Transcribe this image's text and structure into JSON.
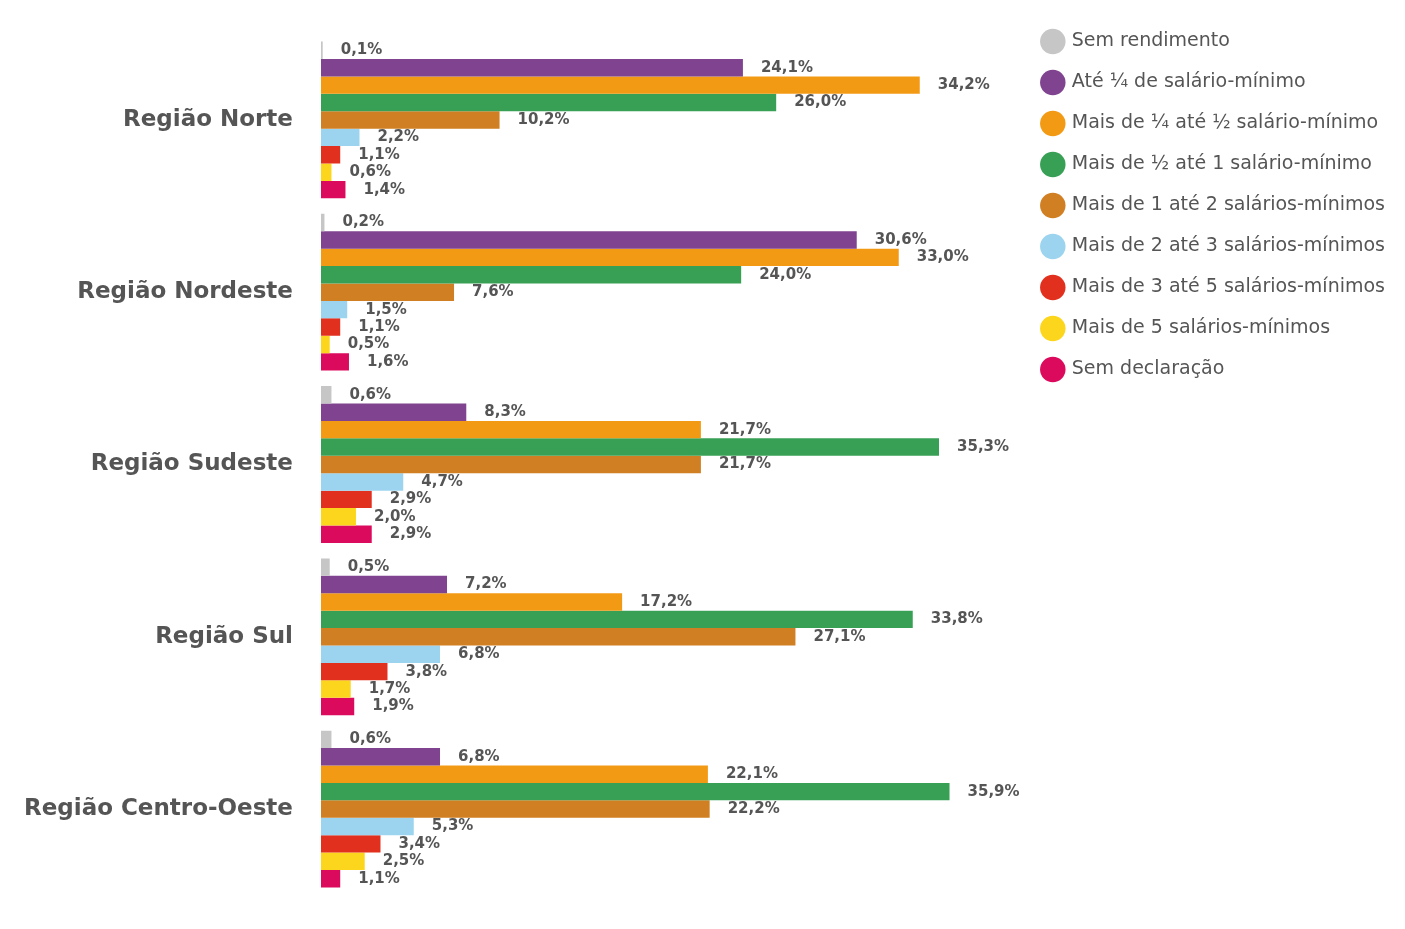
{
  "chart_data": {
    "type": "bar",
    "orientation": "horizontal",
    "legend": "top right",
    "tick_labels": "y",
    "marker": "circle",
    "categories": [
      "Região Norte",
      "Região Nordeste",
      "Região Sudeste",
      "Região Sul",
      "Região Centro-Oeste"
    ],
    "series": [
      {
        "name": "Sem rendimento",
        "color": "#c6c6c6",
        "values": [
          0.1,
          0.2,
          0.6,
          0.5,
          0.6
        ],
        "value_labels": [
          "0,1%",
          "0,2%",
          "0,6%",
          "0,5%",
          "0,6%"
        ]
      },
      {
        "name": "Até ¼ de salário-mínimo",
        "color": "#7f438f",
        "values": [
          24.1,
          30.6,
          8.3,
          7.2,
          6.8
        ],
        "value_labels": [
          "24,1%",
          "30,6%",
          "8,3%",
          "7,2%",
          "6,8%"
        ]
      },
      {
        "name": "Mais de ¼ até ½ salário-mínimo",
        "color": "#f39a14",
        "values": [
          34.2,
          33.0,
          21.7,
          17.2,
          22.1
        ],
        "value_labels": [
          "34,2%",
          "33,0%",
          "21,7%",
          "17,2%",
          "22,1%"
        ]
      },
      {
        "name": "Mais de ½ até 1 salário-mínimo",
        "color": "#37a055",
        "values": [
          26.0,
          24.0,
          35.3,
          33.8,
          35.9
        ],
        "value_labels": [
          "26,0%",
          "24,0%",
          "35,3%",
          "33,8%",
          "35,9%"
        ]
      },
      {
        "name": "Mais de 1 até 2 salários-mínimos",
        "color": "#d07f23",
        "values": [
          10.2,
          7.6,
          21.7,
          27.1,
          22.2
        ],
        "value_labels": [
          "10,2%",
          "7,6%",
          "21,7%",
          "27,1%",
          "22,2%"
        ]
      },
      {
        "name": "Mais de 2 até 3 salários-mínimos",
        "color": "#9cd4ef",
        "values": [
          2.2,
          1.5,
          4.7,
          6.8,
          5.3
        ],
        "value_labels": [
          "2,2%",
          "1,5%",
          "4,7%",
          "6,8%",
          "5,3%"
        ]
      },
      {
        "name": "Mais de 3 até 5 salários-mínimos",
        "color": "#e2301f",
        "values": [
          1.1,
          1.1,
          2.9,
          3.8,
          3.4
        ],
        "value_labels": [
          "1,1%",
          "1,1%",
          "2,9%",
          "3,8%",
          "3,4%"
        ]
      },
      {
        "name": "Mais de 5 salários-mínimos",
        "color": "#fcd61c",
        "values": [
          0.6,
          0.5,
          2.0,
          1.7,
          2.5
        ],
        "value_labels": [
          "0,6%",
          "0,5%",
          "2,0%",
          "1,7%",
          "2,5%"
        ]
      },
      {
        "name": "Sem declaração",
        "color": "#db0a5c",
        "values": [
          1.4,
          1.6,
          2.9,
          1.9,
          1.1
        ],
        "value_labels": [
          "1,4%",
          "1,6%",
          "2,9%",
          "1,9%",
          "1,1%"
        ]
      }
    ]
  }
}
